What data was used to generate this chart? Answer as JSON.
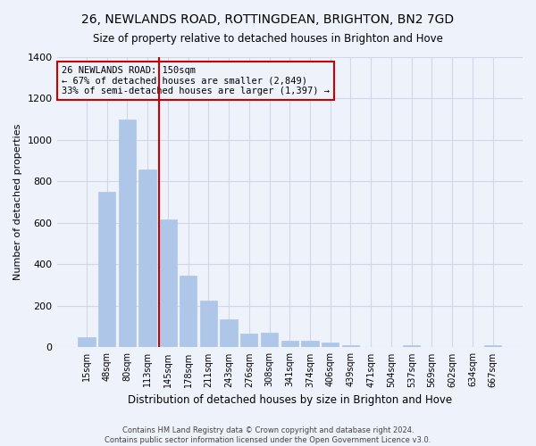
{
  "title": "26, NEWLANDS ROAD, ROTTINGDEAN, BRIGHTON, BN2 7GD",
  "subtitle": "Size of property relative to detached houses in Brighton and Hove",
  "xlabel": "Distribution of detached houses by size in Brighton and Hove",
  "ylabel": "Number of detached properties",
  "footer_line1": "Contains HM Land Registry data © Crown copyright and database right 2024.",
  "footer_line2": "Contains public sector information licensed under the Open Government Licence v3.0.",
  "bar_labels": [
    "15sqm",
    "48sqm",
    "80sqm",
    "113sqm",
    "145sqm",
    "178sqm",
    "211sqm",
    "243sqm",
    "276sqm",
    "308sqm",
    "341sqm",
    "374sqm",
    "406sqm",
    "439sqm",
    "471sqm",
    "504sqm",
    "537sqm",
    "569sqm",
    "602sqm",
    "634sqm",
    "667sqm"
  ],
  "bar_values": [
    50,
    750,
    1100,
    860,
    615,
    345,
    225,
    135,
    65,
    70,
    30,
    30,
    22,
    12,
    0,
    0,
    12,
    0,
    0,
    0,
    12
  ],
  "bar_color": "#aec6e8",
  "bar_edge_color": "#aec6e8",
  "grid_color": "#d0d8e8",
  "bg_color": "#eef2fa",
  "annotation_text": "26 NEWLANDS ROAD: 150sqm\n← 67% of detached houses are smaller (2,849)\n33% of semi-detached houses are larger (1,397) →",
  "vline_color": "#cc0000",
  "annotation_box_color": "#cc0000",
  "ylim": [
    0,
    1400
  ],
  "yticks": [
    0,
    200,
    400,
    600,
    800,
    1000,
    1200,
    1400
  ]
}
